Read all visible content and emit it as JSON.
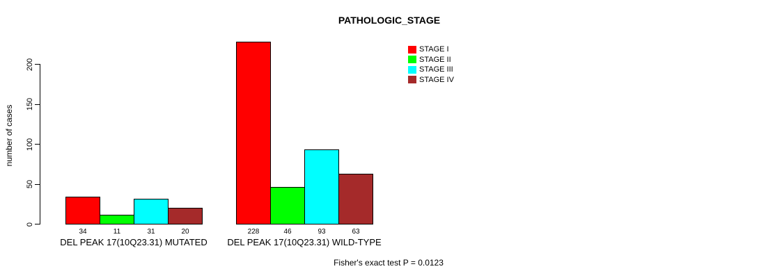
{
  "chart_data": {
    "type": "bar",
    "title": "PATHOLOGIC_STAGE",
    "ylabel": "number of cases",
    "xlabel": "",
    "ylim": [
      0,
      230
    ],
    "yticks": [
      0,
      50,
      100,
      150,
      200
    ],
    "grid": false,
    "legend_position": "top-right",
    "bar_value_labels": true,
    "categories": [
      "DEL PEAK 17(10Q23.31) MUTATED",
      "DEL PEAK 17(10Q23.31) WILD-TYPE"
    ],
    "series": [
      {
        "name": "STAGE I",
        "color": "#ff0000",
        "values": [
          34,
          228
        ]
      },
      {
        "name": "STAGE II",
        "color": "#00ff00",
        "values": [
          11,
          46
        ]
      },
      {
        "name": "STAGE III",
        "color": "#00ffff",
        "values": [
          31,
          93
        ]
      },
      {
        "name": "STAGE IV",
        "color": "#a52a2a",
        "values": [
          20,
          63
        ]
      }
    ],
    "annotation": "Fisher's exact test P = 0.0123"
  },
  "colors": {
    "background": "#ffffff",
    "axis": "#000000",
    "text": "#000000"
  }
}
